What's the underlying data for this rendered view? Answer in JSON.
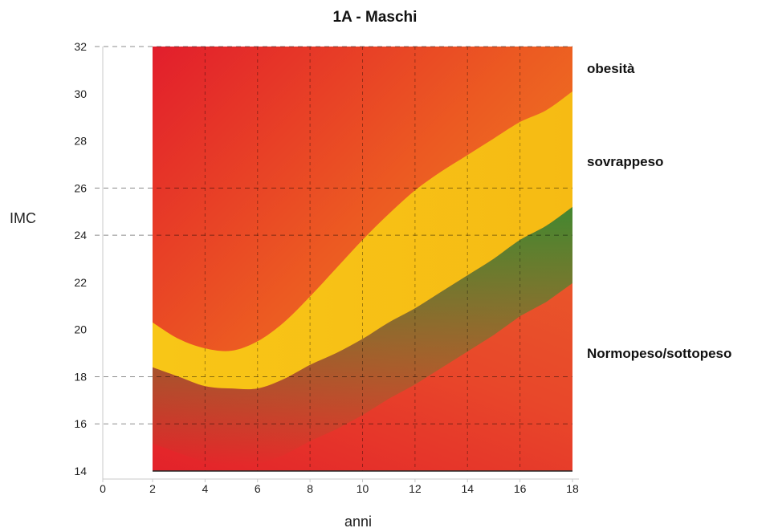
{
  "chart_data": {
    "type": "area",
    "title": "1A - Maschi",
    "xlabel": "anni",
    "ylabel": "IMC",
    "xlim": [
      0,
      18
    ],
    "ylim": [
      14,
      32
    ],
    "x_ticks": [
      0,
      2,
      4,
      6,
      8,
      10,
      12,
      14,
      16,
      18
    ],
    "y_ticks": [
      14,
      16,
      18,
      20,
      22,
      24,
      26,
      28,
      30,
      32
    ],
    "highlighted_y_gridlines": [
      32,
      26,
      24,
      18,
      16
    ],
    "grid": "dashed",
    "series": [
      {
        "name": "Normopeso/sottopeso",
        "color": "#3a8a30",
        "x": [
          2,
          3,
          4,
          5,
          6,
          7,
          8,
          9,
          10,
          11,
          12,
          13,
          14,
          15,
          16,
          17,
          18
        ],
        "values": [
          18.4,
          18.0,
          17.6,
          17.5,
          17.5,
          17.9,
          18.5,
          19.0,
          19.6,
          20.3,
          20.9,
          21.6,
          22.3,
          23.0,
          23.8,
          24.4,
          25.2
        ]
      },
      {
        "name": "sovrappeso",
        "color": "#f7bf14",
        "x": [
          2,
          3,
          4,
          5,
          6,
          7,
          8,
          9,
          10,
          11,
          12,
          13,
          14,
          15,
          16,
          17,
          18
        ],
        "values": [
          20.3,
          19.6,
          19.2,
          19.1,
          19.5,
          20.3,
          21.4,
          22.6,
          23.8,
          24.9,
          25.9,
          26.7,
          27.4,
          28.1,
          28.8,
          29.3,
          30.1
        ]
      },
      {
        "name": "obesità",
        "color": "#e8272a",
        "x": [
          2,
          18
        ],
        "values": [
          32,
          32
        ]
      }
    ]
  }
}
